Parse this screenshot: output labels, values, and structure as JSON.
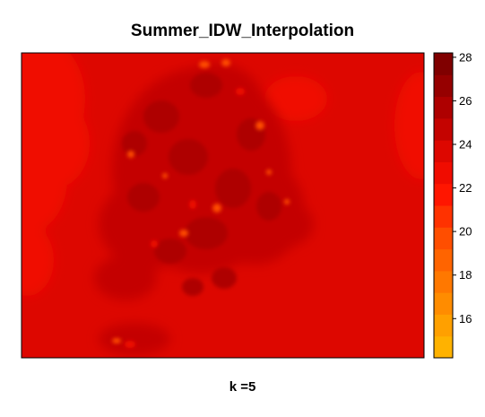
{
  "chart_data": {
    "type": "heatmap",
    "title": "Summer_IDW_Interpolation",
    "xlabel": "k =5",
    "ylabel": "",
    "legend_position": "right",
    "colorbar": {
      "range": [
        14.2,
        28.2
      ],
      "ticks": [
        16,
        18,
        20,
        22,
        24,
        26,
        28
      ],
      "bins": [
        {
          "from": 14.2,
          "to": 15.2,
          "color": "#FFB200"
        },
        {
          "from": 15.2,
          "to": 16.2,
          "color": "#FFA000"
        },
        {
          "from": 16.2,
          "to": 17.2,
          "color": "#FF8C00"
        },
        {
          "from": 17.2,
          "to": 18.2,
          "color": "#FF7800"
        },
        {
          "from": 18.2,
          "to": 19.2,
          "color": "#FF6400"
        },
        {
          "from": 19.2,
          "to": 20.2,
          "color": "#FF4E00"
        },
        {
          "from": 20.2,
          "to": 21.2,
          "color": "#FF3200"
        },
        {
          "from": 21.2,
          "to": 22.2,
          "color": "#FF1600"
        },
        {
          "from": 22.2,
          "to": 23.2,
          "color": "#F00C00"
        },
        {
          "from": 23.2,
          "to": 24.2,
          "color": "#DD0700"
        },
        {
          "from": 24.2,
          "to": 25.2,
          "color": "#C40300"
        },
        {
          "from": 25.2,
          "to": 26.2,
          "color": "#AE0000"
        },
        {
          "from": 26.2,
          "to": 27.2,
          "color": "#960000"
        },
        {
          "from": 27.2,
          "to": 28.2,
          "color": "#800000"
        }
      ]
    },
    "field": {
      "background_value": 23.2,
      "features": [
        {
          "name": "western-lighter-band",
          "value": 22.5
        },
        {
          "name": "east-lighter-patch",
          "value": 22.6
        },
        {
          "name": "central-cluster",
          "value": 24.6
        },
        {
          "name": "central-dark-core",
          "value": 25.4
        },
        {
          "name": "southern-hotspot",
          "value": 24.4
        },
        {
          "name": "hotspot-low-values",
          "value": 19.5
        }
      ]
    }
  }
}
